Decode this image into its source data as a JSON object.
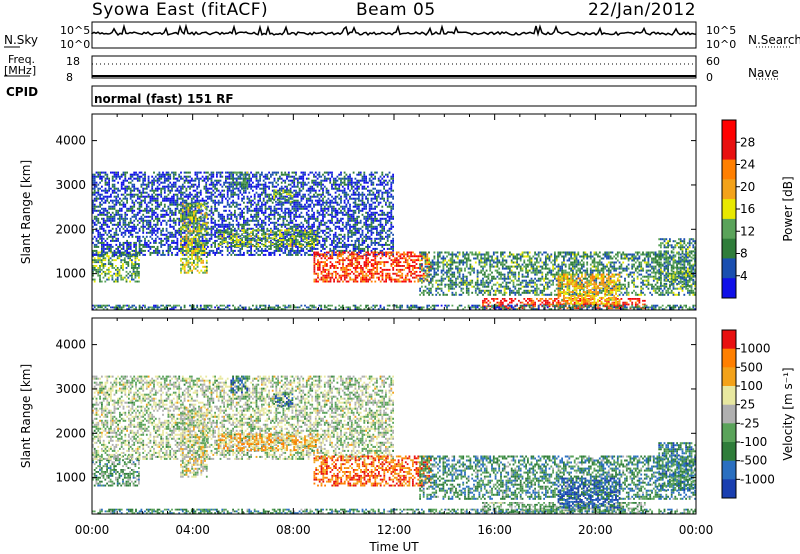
{
  "header": {
    "title": "Syowa East (fitACF)",
    "beam": "Beam 05",
    "date": "22/Jan/2012"
  },
  "top_panels": {
    "nsky_label": "N.Sky",
    "nsky_ticks": [
      "10^5",
      "10^0"
    ],
    "nsearch_label": "N.Search",
    "nsearch_ticks": [
      "10^5",
      "10^0"
    ],
    "freq_label_line1": "Freq.",
    "freq_label_line2": "[MHz]",
    "freq_ticks": [
      "18",
      "8"
    ],
    "nave_label": "Nave",
    "nave_ticks": [
      "60",
      "0"
    ],
    "cpid_label": "CPID",
    "cpid_value": "normal (fast) 151 RF"
  },
  "chart_data": [
    {
      "type": "heatmap",
      "panel": "power",
      "ylabel": "Slant Range [km]",
      "ylim": [
        180,
        4600
      ],
      "yticks": [
        1000,
        2000,
        3000,
        4000
      ],
      "xlim": [
        0,
        24
      ],
      "xticks": [
        "00:00",
        "04:00",
        "08:00",
        "12:00",
        "16:00",
        "20:00",
        "00:00"
      ],
      "colorbar": {
        "label": "Power [dB]",
        "ticks": [
          "4",
          "8",
          "12",
          "16",
          "20",
          "24",
          "28"
        ],
        "colors": [
          "#1010e8",
          "#1a4fb0",
          "#2f7d3a",
          "#5aa35a",
          "#e8e800",
          "#f3a21a",
          "#ff7f00",
          "#e81010",
          "#ff0000"
        ]
      },
      "regions": [
        {
          "t0": 0.0,
          "t1": 1.9,
          "r0": 800,
          "r1": 1500,
          "intensity": 0.35
        },
        {
          "t0": 0.0,
          "t1": 12.0,
          "r0": 1400,
          "r1": 3300,
          "intensity": 0.15
        },
        {
          "t0": 3.5,
          "t1": 4.6,
          "r0": 1000,
          "r1": 2600,
          "intensity": 0.45
        },
        {
          "t0": 5.5,
          "t1": 6.2,
          "r0": 2900,
          "r1": 3300,
          "intensity": 0.3
        },
        {
          "t0": 7.2,
          "t1": 8.0,
          "r0": 2600,
          "r1": 2900,
          "intensity": 0.35
        },
        {
          "t0": 5.0,
          "t1": 9.0,
          "r0": 1600,
          "r1": 2000,
          "intensity": 0.4
        },
        {
          "t0": 8.8,
          "t1": 13.5,
          "r0": 800,
          "r1": 1500,
          "intensity": 0.8
        },
        {
          "t0": 13.0,
          "t1": 24.0,
          "r0": 500,
          "r1": 1500,
          "intensity": 0.3
        },
        {
          "t0": 15.5,
          "t1": 22.0,
          "r0": 200,
          "r1": 450,
          "intensity": 0.85
        },
        {
          "t0": 18.5,
          "t1": 21.0,
          "r0": 300,
          "r1": 1000,
          "intensity": 0.6
        },
        {
          "t0": 22.5,
          "t1": 24.0,
          "r0": 700,
          "r1": 1800,
          "intensity": 0.3
        },
        {
          "t0": 0.0,
          "t1": 24.0,
          "r0": 180,
          "r1": 300,
          "intensity": 0.25
        }
      ]
    },
    {
      "type": "heatmap",
      "panel": "velocity",
      "ylabel": "Slant Range [km]",
      "xlabel": "Time UT",
      "ylim": [
        180,
        4600
      ],
      "yticks": [
        1000,
        2000,
        3000,
        4000
      ],
      "xlim": [
        0,
        24
      ],
      "xticks": [
        "00:00",
        "04:00",
        "08:00",
        "12:00",
        "16:00",
        "20:00",
        "00:00"
      ],
      "colorbar": {
        "label": "Velocity [m s^-1]",
        "ticks": [
          "1000",
          "500",
          "100",
          "25",
          "-25",
          "-100",
          "-500",
          "-1000"
        ],
        "colors": [
          "#1a3fb0",
          "#2a6fc0",
          "#2f7d3a",
          "#5aa35a",
          "#b0b0b0",
          "#e8e8a0",
          "#f3a21a",
          "#ff7f00",
          "#e81010"
        ]
      },
      "regions": [
        {
          "t0": 0.0,
          "t1": 1.9,
          "r0": 800,
          "r1": 1500,
          "intensity": 0.35
        },
        {
          "t0": 0.0,
          "t1": 12.0,
          "r0": 1400,
          "r1": 3300,
          "intensity": 0.5
        },
        {
          "t0": 3.5,
          "t1": 4.6,
          "r0": 1000,
          "r1": 2600,
          "intensity": 0.55
        },
        {
          "t0": 5.5,
          "t1": 6.2,
          "r0": 2900,
          "r1": 3300,
          "intensity": 0.2
        },
        {
          "t0": 7.2,
          "t1": 8.0,
          "r0": 2600,
          "r1": 2900,
          "intensity": 0.2
        },
        {
          "t0": 5.0,
          "t1": 9.0,
          "r0": 1600,
          "r1": 2000,
          "intensity": 0.7
        },
        {
          "t0": 8.8,
          "t1": 13.5,
          "r0": 800,
          "r1": 1500,
          "intensity": 0.85
        },
        {
          "t0": 13.0,
          "t1": 24.0,
          "r0": 500,
          "r1": 1500,
          "intensity": 0.3
        },
        {
          "t0": 15.5,
          "t1": 22.0,
          "r0": 200,
          "r1": 450,
          "intensity": 0.4
        },
        {
          "t0": 18.5,
          "t1": 21.0,
          "r0": 300,
          "r1": 1000,
          "intensity": 0.1
        },
        {
          "t0": 22.5,
          "t1": 24.0,
          "r0": 700,
          "r1": 1800,
          "intensity": 0.25
        },
        {
          "t0": 0.0,
          "t1": 24.0,
          "r0": 180,
          "r1": 300,
          "intensity": 0.3
        }
      ]
    }
  ]
}
